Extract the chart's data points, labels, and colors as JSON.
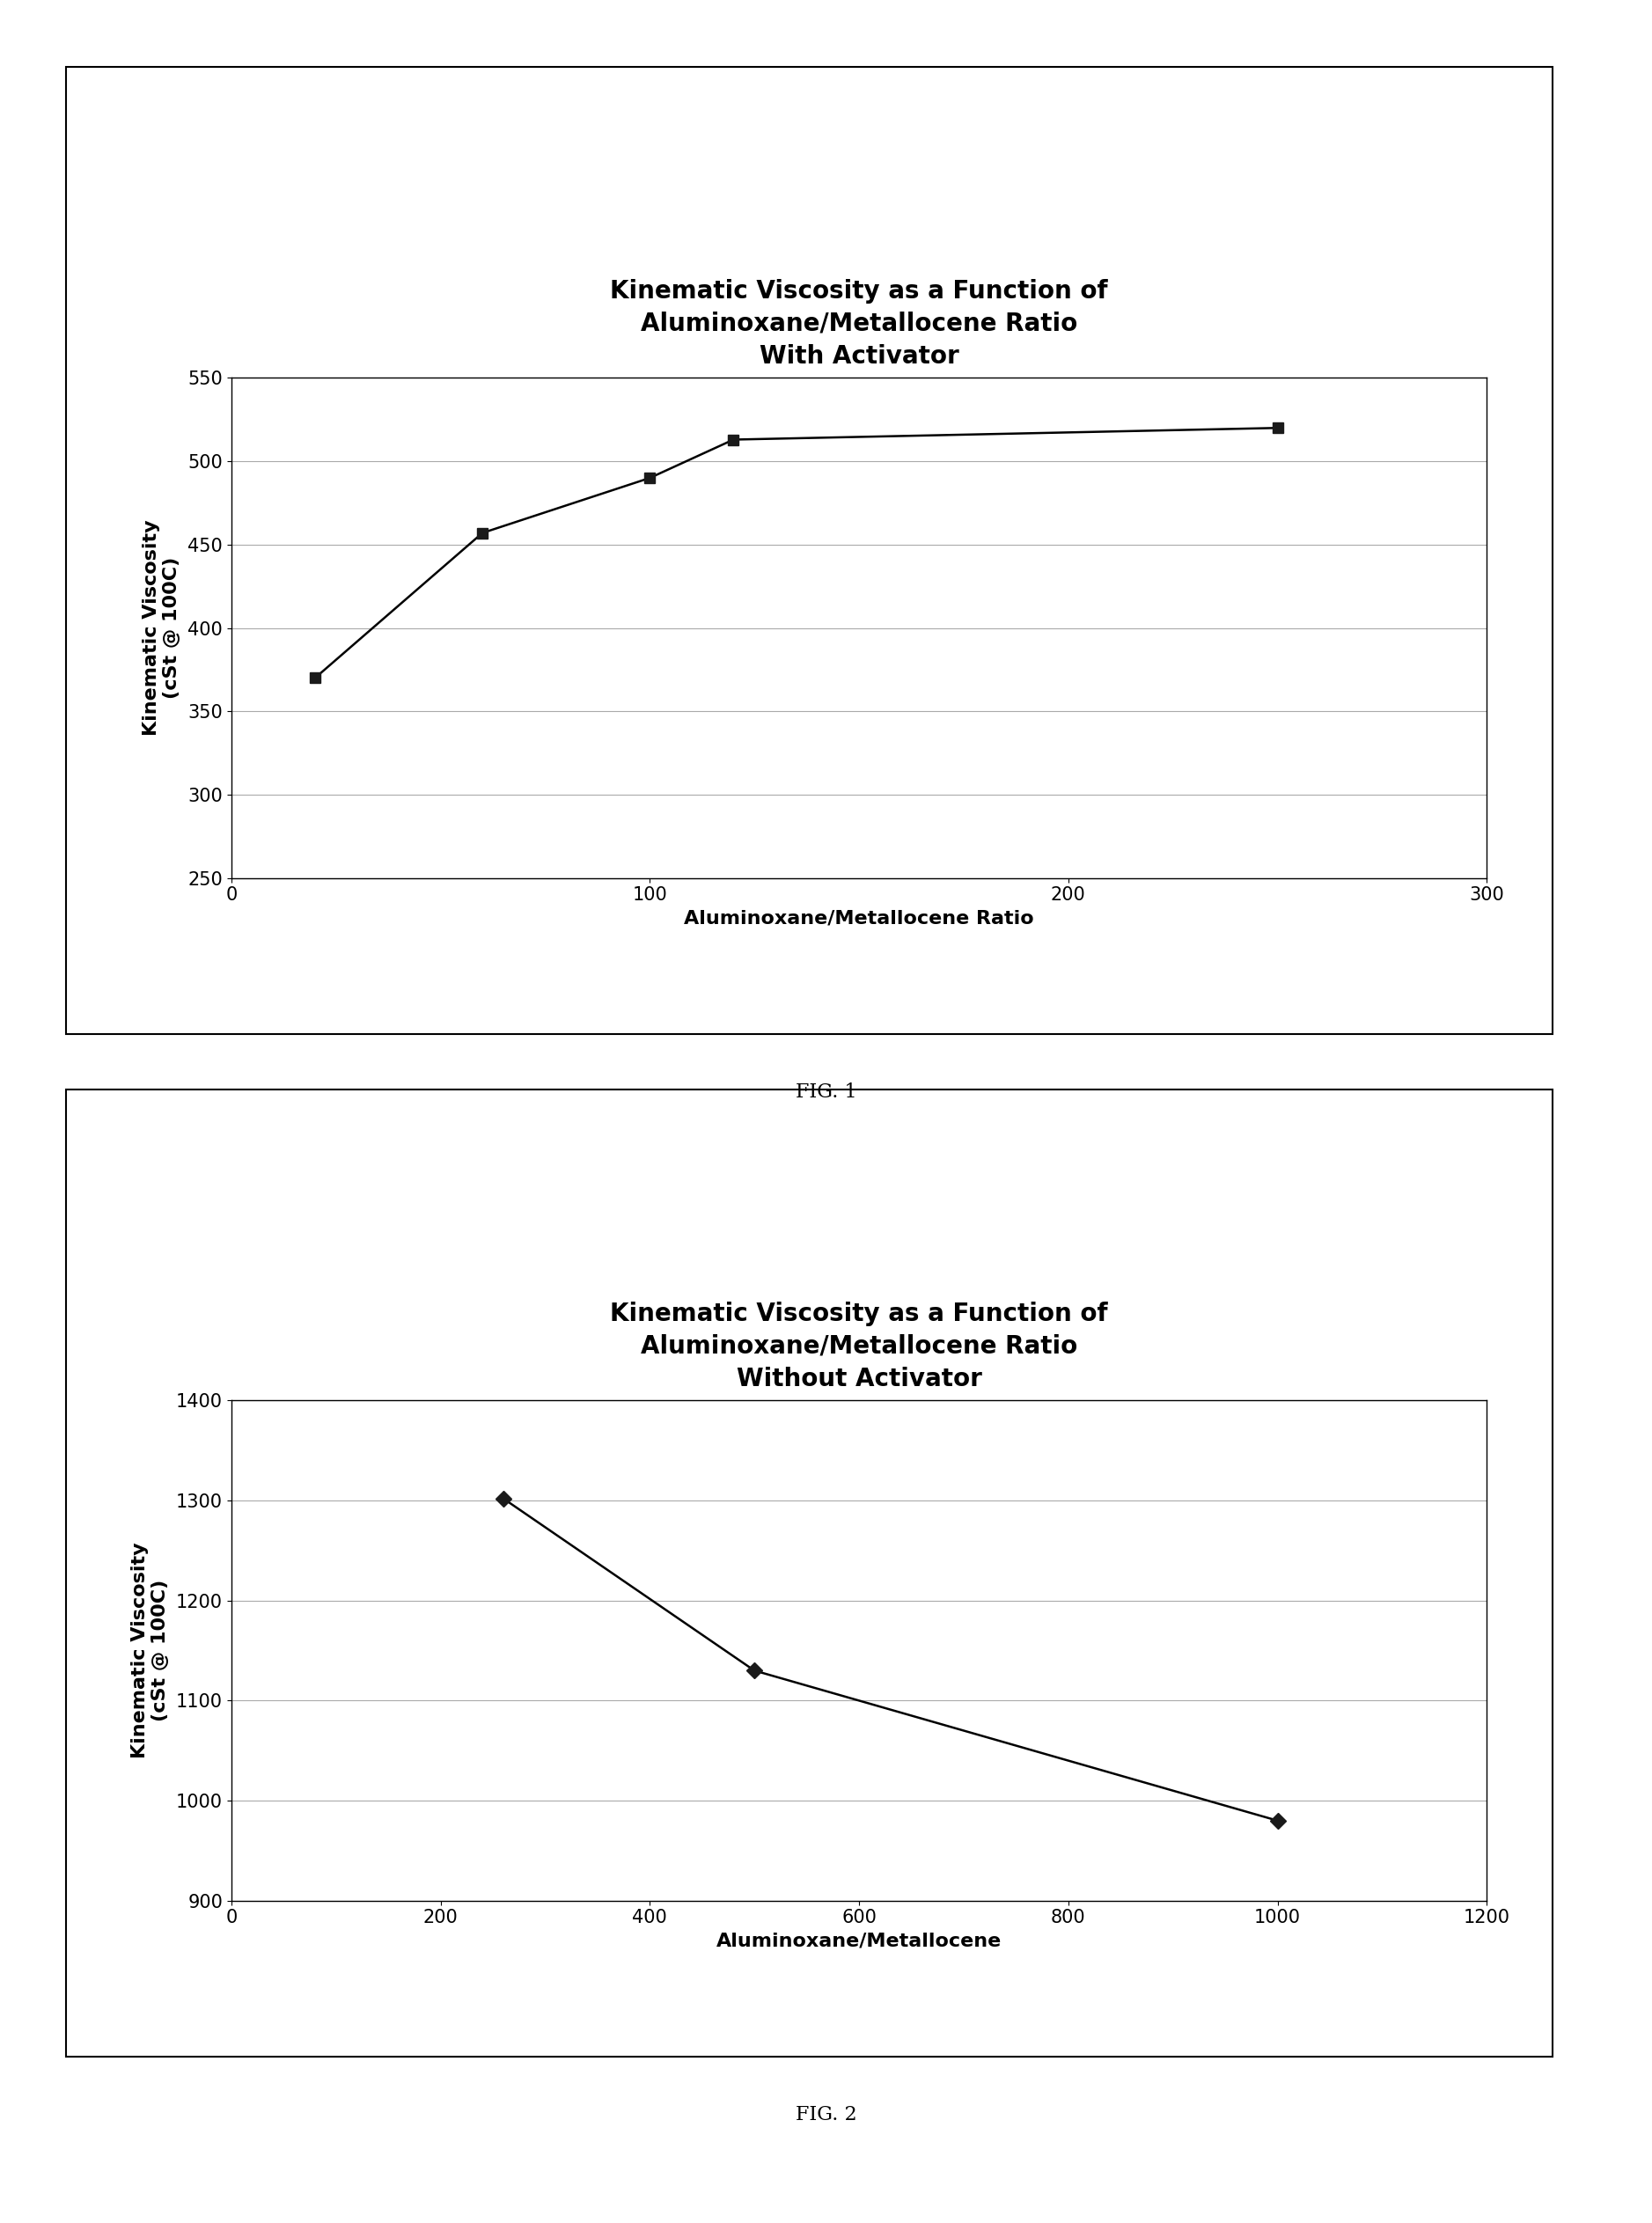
{
  "fig1": {
    "title_line1": "Kinematic Viscosity as a Function of",
    "title_line2": "Aluminoxane/Metallocene Ratio",
    "title_line3": "With Activator",
    "xlabel": "Aluminoxane/Metallocene Ratio",
    "ylabel": "Kinematic Viscosity\n(cSt @ 100C)",
    "x": [
      20,
      60,
      100,
      120,
      250
    ],
    "y": [
      370,
      457,
      490,
      513,
      520
    ],
    "xlim": [
      0,
      300
    ],
    "ylim": [
      250,
      550
    ],
    "xticks": [
      0,
      100,
      200,
      300
    ],
    "yticks": [
      250,
      300,
      350,
      400,
      450,
      500,
      550
    ],
    "figcaption": "FIG. 1"
  },
  "fig2": {
    "title_line1": "Kinematic Viscosity as a Function of",
    "title_line2": "Aluminoxane/Metallocene Ratio",
    "title_line3": "Without Activator",
    "xlabel": "Aluminoxane/Metallocene",
    "ylabel": "Kinematic Viscosity\n(cSt @ 100C)",
    "x": [
      260,
      500,
      1000
    ],
    "y": [
      1302,
      1130,
      980
    ],
    "xlim": [
      0,
      1200
    ],
    "ylim": [
      900,
      1400
    ],
    "xticks": [
      0,
      200,
      400,
      600,
      800,
      1000,
      1200
    ],
    "yticks": [
      900,
      1000,
      1100,
      1200,
      1300,
      1400
    ],
    "figcaption": "FIG. 2"
  },
  "bg_color": "#ffffff",
  "line_color": "#000000",
  "marker_color": "#1a1a1a",
  "grid_color": "#aaaaaa",
  "title_fontsize": 20,
  "axis_label_fontsize": 16,
  "tick_fontsize": 15,
  "caption_fontsize": 16,
  "marker": "s",
  "marker2": "D",
  "marker_size": 9,
  "linewidth": 1.8,
  "panel_box_color": "#000000",
  "panel_bg": "#ffffff"
}
